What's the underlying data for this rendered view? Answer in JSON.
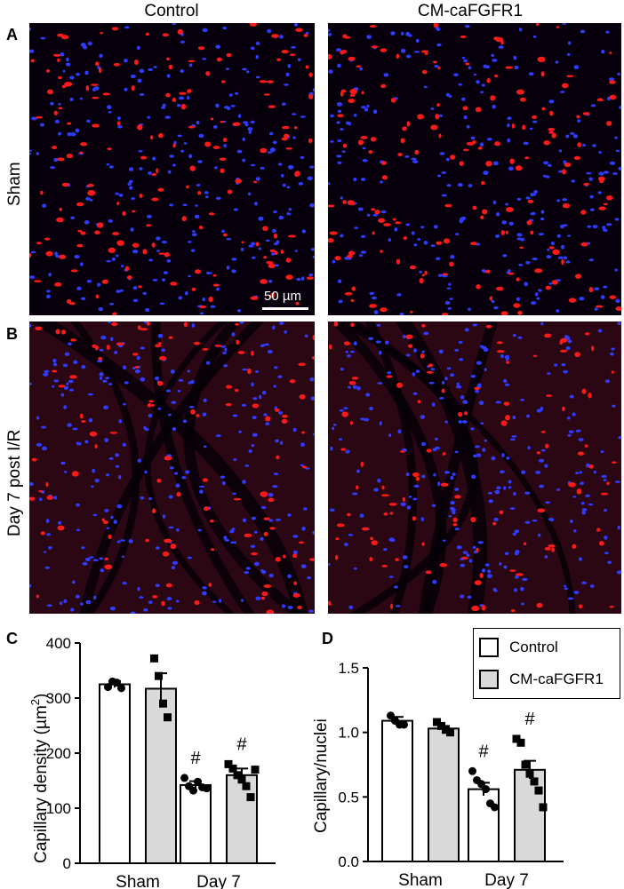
{
  "columns": [
    "Control",
    "CM-caFGFR1"
  ],
  "panels": {
    "A": "A",
    "B": "B",
    "C": "C",
    "D": "D"
  },
  "rows": [
    "Sham",
    "Day 7 post I/R"
  ],
  "scale_bar": "50 µm",
  "legend": [
    {
      "label": "Control",
      "color": "#ffffff"
    },
    {
      "label": "CM-caFGFR1",
      "color": "#d9d9d9"
    }
  ],
  "stain_colors": {
    "capillary": "#ff1a1a",
    "nuclei": "#2f3cff",
    "tissue_sham": "#07000c",
    "tissue_injured": "#2a0712"
  },
  "chart_data": [
    {
      "type": "bar",
      "panel": "C",
      "ylabel": "Capillary density (µm²)",
      "ylabel_main": "Capillary density (µm",
      "ylabel_sup": "2",
      "ylabel_tail": ")",
      "categories": [
        "Sham",
        "Day 7"
      ],
      "ylim": [
        0,
        400
      ],
      "yticks": [
        0,
        100,
        200,
        300,
        400
      ],
      "series": [
        {
          "name": "Control",
          "values": [
            325,
            142
          ],
          "sem": [
            6,
            7
          ],
          "points": [
            [
              320,
              330,
              328,
              318
            ],
            [
              155,
              140,
              132,
              148,
              138,
              136
            ]
          ]
        },
        {
          "name": "CM-caFGFR1",
          "values": [
            317,
            160
          ],
          "sem": [
            28,
            12
          ],
          "points": [
            [
              372,
              340,
              290,
              265
            ],
            [
              180,
              172,
              160,
              152,
              140,
              120,
              170
            ]
          ]
        }
      ],
      "annotations": [
        {
          "text": "#",
          "category": "Day 7",
          "series": "Control"
        },
        {
          "text": "#",
          "category": "Day 7",
          "series": "CM-caFGFR1"
        }
      ]
    },
    {
      "type": "bar",
      "panel": "D",
      "ylabel": "Capillary/nuclei",
      "categories": [
        "Sham",
        "Day 7"
      ],
      "ylim": [
        0,
        1.5
      ],
      "yticks": [
        "0.0",
        "0.5",
        "1.0",
        "1.5"
      ],
      "series": [
        {
          "name": "Control",
          "values": [
            1.09,
            0.56
          ],
          "sem": [
            0.03,
            0.05
          ],
          "points": [
            [
              1.13,
              1.09,
              1.06,
              1.06
            ],
            [
              0.7,
              0.63,
              0.6,
              0.56,
              0.45,
              0.42
            ]
          ]
        },
        {
          "name": "CM-caFGFR1",
          "values": [
            1.03,
            0.71
          ],
          "sem": [
            0.02,
            0.07
          ],
          "points": [
            [
              1.08,
              1.05,
              1.02,
              1.0
            ],
            [
              0.95,
              0.92,
              0.75,
              0.68,
              0.62,
              0.55,
              0.42
            ]
          ]
        }
      ],
      "annotations": [
        {
          "text": "#",
          "category": "Day 7",
          "series": "Control"
        },
        {
          "text": "#",
          "category": "Day 7",
          "series": "CM-caFGFR1"
        }
      ]
    }
  ]
}
